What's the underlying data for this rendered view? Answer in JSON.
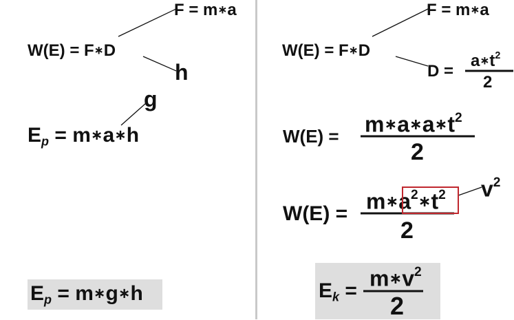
{
  "left": {
    "force": "F = m",
    "force_var": "a",
    "work": "W(E) = F",
    "work_var": "D",
    "h_label": "h",
    "g_label": "g",
    "ep_symbol": "E",
    "ep_sub": "p",
    "ep_eq": " = m",
    "ep_a": "a",
    "ep_h": "h",
    "final_symbol": "E",
    "final_sub": "p",
    "final_eq": " = m",
    "final_g": "g",
    "final_h": "h"
  },
  "right": {
    "force": "F = m",
    "force_var": "a",
    "work": "W(E) = F",
    "work_var": "D",
    "d_label": "D =",
    "d_num": "a",
    "d_num_t": "t",
    "d_exp": "2",
    "d_den": "2",
    "w2_label": "W(E) =",
    "w2_num": "m",
    "w2_a1": "a",
    "w2_a2": "a",
    "w2_t": "t",
    "w2_exp": "2",
    "w2_den": "2",
    "w3_label": "W(E) =",
    "w3_num": "m",
    "w3_a": "a",
    "w3_a_exp": "2",
    "w3_t": "t",
    "w3_t_exp": "2",
    "w3_den": "2",
    "v_label": "v",
    "v_exp": "2",
    "ek_symbol": "E",
    "ek_sub": "k",
    "ek_eq": " =",
    "ek_num": "m",
    "ek_v": "v",
    "ek_exp": "2",
    "ek_den": "2"
  },
  "operator": "∗"
}
